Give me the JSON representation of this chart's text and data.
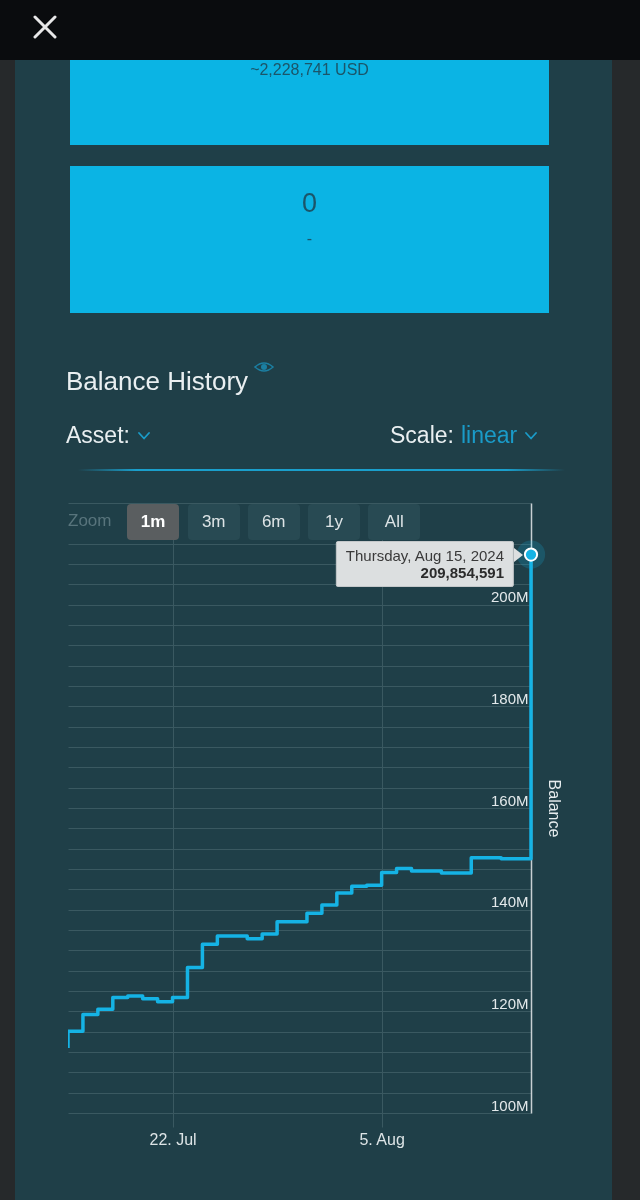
{
  "chart_data": {
    "type": "step",
    "title": "Balance History",
    "ylabel": "Balance",
    "x": [
      "2024-07-15",
      "2024-07-15",
      "2024-07-16",
      "2024-07-17",
      "2024-07-18",
      "2024-07-19",
      "2024-07-20",
      "2024-07-21",
      "2024-07-22",
      "2024-07-23",
      "2024-07-24",
      "2024-07-25",
      "2024-07-27",
      "2024-07-28",
      "2024-07-29",
      "2024-07-31",
      "2024-08-01",
      "2024-08-02",
      "2024-08-03",
      "2024-08-04",
      "2024-08-05",
      "2024-08-06",
      "2024-08-07",
      "2024-08-09",
      "2024-08-11",
      "2024-08-13",
      "2024-08-15"
    ],
    "values": [
      112800000,
      116100000,
      119400000,
      120400000,
      122700000,
      123000000,
      122500000,
      121900000,
      122700000,
      128600000,
      133200000,
      134800000,
      134300000,
      135200000,
      137600000,
      139300000,
      140900000,
      143300000,
      144600000,
      144800000,
      147300000,
      148100000,
      147600000,
      147200000,
      150200000,
      150000000,
      209854591
    ],
    "color": "#15b3e5",
    "line_style": "solid",
    "xlim": [
      "2024-07-15",
      "2024-08-15"
    ],
    "xticks": [
      {
        "value": "2024-07-22",
        "label": "22. Jul"
      },
      {
        "value": "2024-08-05",
        "label": "5. Aug"
      }
    ],
    "ylim": [
      100000000,
      220000000
    ],
    "yticks": [
      {
        "value": 100000000,
        "label": "100M"
      },
      {
        "value": 104000000,
        "label": null
      },
      {
        "value": 108000000,
        "label": null
      },
      {
        "value": 112000000,
        "label": null
      },
      {
        "value": 116000000,
        "label": null
      },
      {
        "value": 120000000,
        "label": "120M"
      },
      {
        "value": 124000000,
        "label": null
      },
      {
        "value": 128000000,
        "label": null
      },
      {
        "value": 132000000,
        "label": null
      },
      {
        "value": 136000000,
        "label": null
      },
      {
        "value": 140000000,
        "label": "140M"
      },
      {
        "value": 144000000,
        "label": null
      },
      {
        "value": 148000000,
        "label": null
      },
      {
        "value": 152000000,
        "label": null
      },
      {
        "value": 156000000,
        "label": null
      },
      {
        "value": 160000000,
        "label": "160M"
      },
      {
        "value": 164000000,
        "label": null
      },
      {
        "value": 168000000,
        "label": null
      },
      {
        "value": 172000000,
        "label": null
      },
      {
        "value": 176000000,
        "label": null
      },
      {
        "value": 180000000,
        "label": "180M"
      },
      {
        "value": 184000000,
        "label": null
      },
      {
        "value": 188000000,
        "label": null
      },
      {
        "value": 192000000,
        "label": null
      },
      {
        "value": 196000000,
        "label": null
      },
      {
        "value": 200000000,
        "label": "200M"
      },
      {
        "value": 204000000,
        "label": null
      },
      {
        "value": 208000000,
        "label": null
      },
      {
        "value": 212000000,
        "label": null
      },
      {
        "value": 220000000,
        "label": null
      }
    ],
    "grid": true,
    "annotations": [
      "~2,228,741 USD",
      "0",
      "-",
      "Asset:",
      "Scale:",
      "linear",
      "Zoom",
      "1m",
      "3m",
      "6m",
      "1y",
      "All",
      {
        "text": "Thursday, Aug 15, 2024",
        "x": "2024-08-15"
      },
      {
        "text": "209,854,591",
        "x": "2024-08-15",
        "y": 209854591
      }
    ]
  }
}
